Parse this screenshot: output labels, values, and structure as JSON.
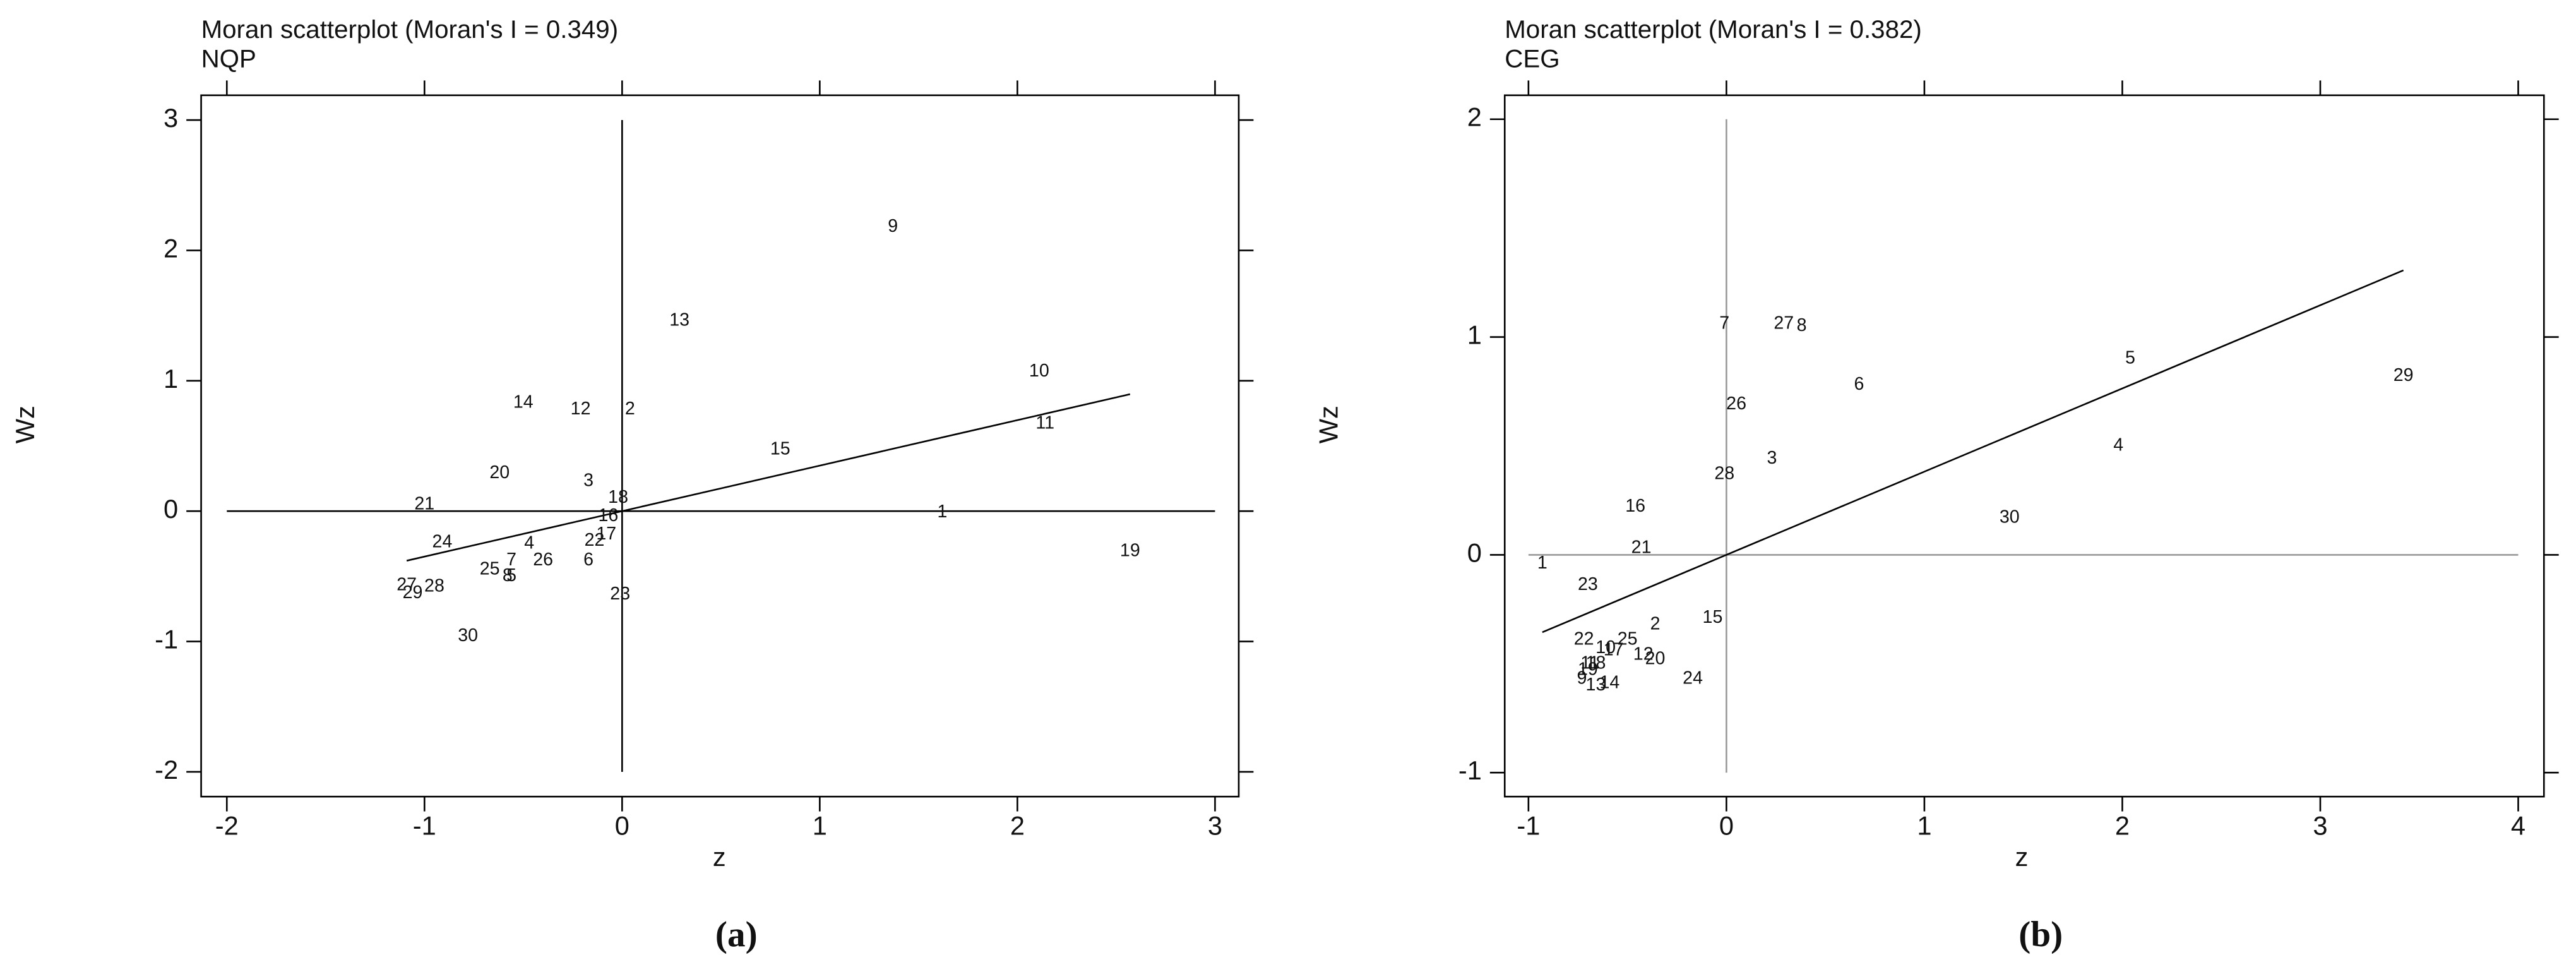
{
  "chart_data": [
    {
      "type": "scatter",
      "title": "Moran scatterplot (Moran's I = 0.349)",
      "subtitle": "NQP",
      "morans_i": 0.349,
      "x_label": "z",
      "y_label": "Wz",
      "panel_label": "(a)",
      "ref_color": "#000000",
      "labels": [
        9,
        13,
        10,
        11,
        14,
        12,
        2,
        15,
        20,
        3,
        18,
        21,
        16,
        1,
        17,
        22,
        24,
        4,
        19,
        7,
        26,
        6,
        25,
        5,
        8,
        23,
        27,
        28,
        29,
        30
      ],
      "x": [
        1.37,
        0.29,
        2.11,
        2.14,
        -0.5,
        -0.21,
        0.04,
        0.8,
        -0.62,
        -0.17,
        -0.02,
        -1.0,
        -0.07,
        1.62,
        -0.08,
        -0.14,
        -0.91,
        -0.47,
        2.57,
        -0.56,
        -0.4,
        -0.17,
        -0.67,
        -0.56,
        -0.58,
        -0.01,
        -1.09,
        -0.95,
        -1.06,
        -0.78
      ],
      "y": [
        2.18,
        1.46,
        1.07,
        0.67,
        0.83,
        0.78,
        0.78,
        0.47,
        0.29,
        0.23,
        0.1,
        0.05,
        -0.04,
        -0.01,
        -0.18,
        -0.23,
        -0.24,
        -0.25,
        -0.31,
        -0.38,
        -0.38,
        -0.38,
        -0.45,
        -0.5,
        -0.5,
        -0.64,
        -0.57,
        -0.58,
        -0.63,
        -0.96
      ],
      "xlim": [
        -2.13,
        3.12
      ],
      "ylim": [
        -2.19,
        3.19
      ],
      "xticks": [
        -2,
        -1,
        0,
        1,
        2,
        3
      ],
      "yticks": [
        -2,
        -1,
        0,
        1,
        2,
        3
      ]
    },
    {
      "type": "scatter",
      "title": "Moran scatterplot (Moran's I = 0.382)",
      "subtitle": "CEG",
      "morans_i": 0.382,
      "x_label": "z",
      "y_label": "Wz",
      "panel_label": "(b)",
      "ref_color": "#999999",
      "labels": [
        7,
        27,
        8,
        6,
        5,
        29,
        26,
        4,
        3,
        28,
        16,
        30,
        21,
        1,
        23,
        15,
        2,
        22,
        25,
        10,
        17,
        12,
        20,
        11,
        18,
        19,
        24,
        9,
        13,
        14
      ],
      "x": [
        -0.01,
        0.29,
        0.38,
        0.67,
        2.04,
        3.42,
        0.05,
        1.98,
        0.23,
        -0.01,
        -0.46,
        1.43,
        -0.43,
        -0.93,
        -0.7,
        -0.07,
        -0.36,
        -0.72,
        -0.5,
        -0.61,
        -0.57,
        -0.42,
        -0.36,
        -0.69,
        -0.66,
        -0.7,
        -0.17,
        -0.73,
        -0.66,
        -0.59
      ],
      "y": [
        1.06,
        1.06,
        1.05,
        0.78,
        0.9,
        0.82,
        0.69,
        0.5,
        0.44,
        0.37,
        0.22,
        0.17,
        0.03,
        -0.04,
        -0.14,
        -0.29,
        -0.32,
        -0.39,
        -0.39,
        -0.43,
        -0.44,
        -0.46,
        -0.48,
        -0.5,
        -0.5,
        -0.53,
        -0.57,
        -0.57,
        -0.6,
        -0.59
      ],
      "xlim": [
        -1.12,
        4.13
      ],
      "ylim": [
        -1.11,
        2.11
      ],
      "xticks": [
        -1,
        0,
        1,
        2,
        3,
        4
      ],
      "yticks": [
        -1,
        0,
        1,
        2
      ]
    }
  ]
}
